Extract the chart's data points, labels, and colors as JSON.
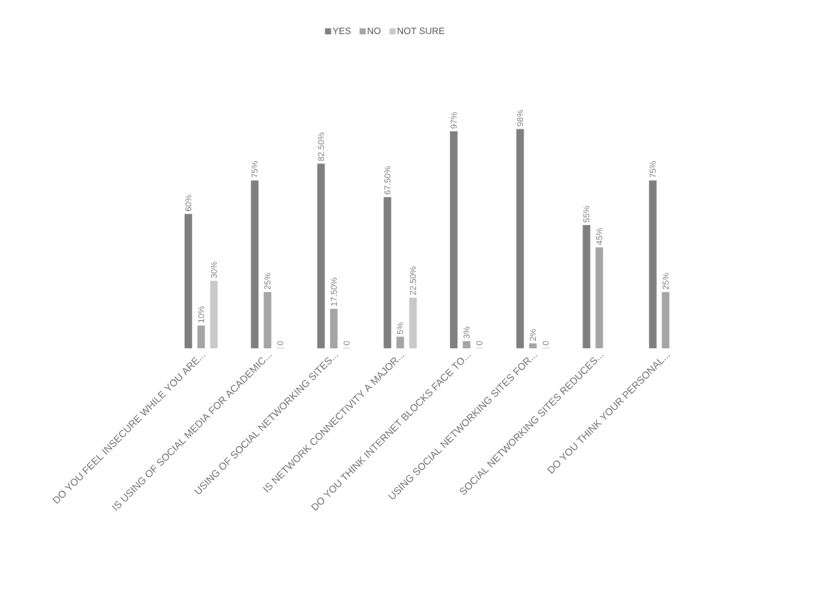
{
  "chart_data": {
    "type": "bar",
    "categories": [
      "DO YOU FEEL INSECURE WHILE YOU ARE...",
      "IS USING OF SOCIAL MEDIA FOR ACADEMIC...",
      "USING OF SOCIAL NETWORKING SITES...",
      "IS NETWORK CONNECTIVITY A MAJOR...",
      "DO YOU THINK INTERNET BLOCKS FACE TO...",
      "USING SOCIAL NETWORKING SITES FOR...",
      "SOCIAL NETWORKING SITES REDUCES...",
      "DO YOU THINK YOUR PERSONAL..."
    ],
    "series": [
      {
        "name": "YES",
        "color": "#7f7f7f",
        "values": [
          60,
          75,
          82.5,
          67.5,
          97,
          98,
          55,
          75
        ],
        "value_labels": [
          "60%",
          "75%",
          "82.50%",
          "67.50%",
          "97%",
          "98%",
          "55%",
          "75%"
        ]
      },
      {
        "name": "NO",
        "color": "#a5a5a5",
        "values": [
          10,
          25,
          17.5,
          5,
          3,
          2,
          45,
          25
        ],
        "value_labels": [
          "10%",
          "25%",
          "17.50%",
          "5%",
          "3%",
          "2%",
          "45%",
          "25%"
        ]
      },
      {
        "name": "NOT SURE",
        "color": "#c9c9c9",
        "values": [
          30,
          0,
          0,
          22.5,
          0,
          0,
          null,
          null
        ],
        "value_labels": [
          "30%",
          "0",
          "0",
          "22.50%",
          "0",
          "0",
          null,
          null
        ]
      }
    ],
    "legend": "top"
  }
}
